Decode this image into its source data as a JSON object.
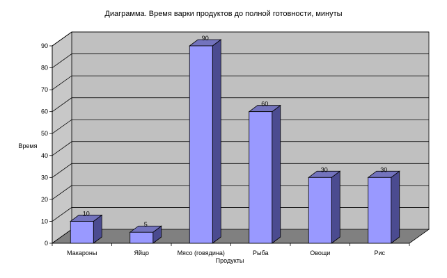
{
  "chart_data": {
    "type": "bar",
    "title": "Диаграмма. Время варки продуктов до полной готовности, минуты",
    "xlabel": "Продукты",
    "ylabel": "Время",
    "categories": [
      "Макароны",
      "Яйцо",
      "Мясо (говядина)",
      "Рыба",
      "Овощи",
      "Рис"
    ],
    "values": [
      10,
      5,
      90,
      60,
      30,
      30
    ],
    "data_labels": [
      "10",
      "5",
      "90",
      "60",
      "30",
      "30"
    ],
    "ylim": [
      0,
      90
    ],
    "yticks": [
      0,
      10,
      20,
      30,
      40,
      50,
      60,
      70,
      80,
      90
    ],
    "ytick_labels": [
      "0",
      "10",
      "20",
      "30",
      "40",
      "50",
      "60",
      "70",
      "80",
      "90"
    ],
    "grid": true,
    "three_d": true,
    "colors": {
      "bar_front": "#9999ff",
      "bar_side": "#4b4b90",
      "bar_top": "#7373bd",
      "back_wall": "#c0c0c0",
      "side_wall": "#c8c8c8",
      "floor": "#808080",
      "gridline": "#000000"
    }
  }
}
